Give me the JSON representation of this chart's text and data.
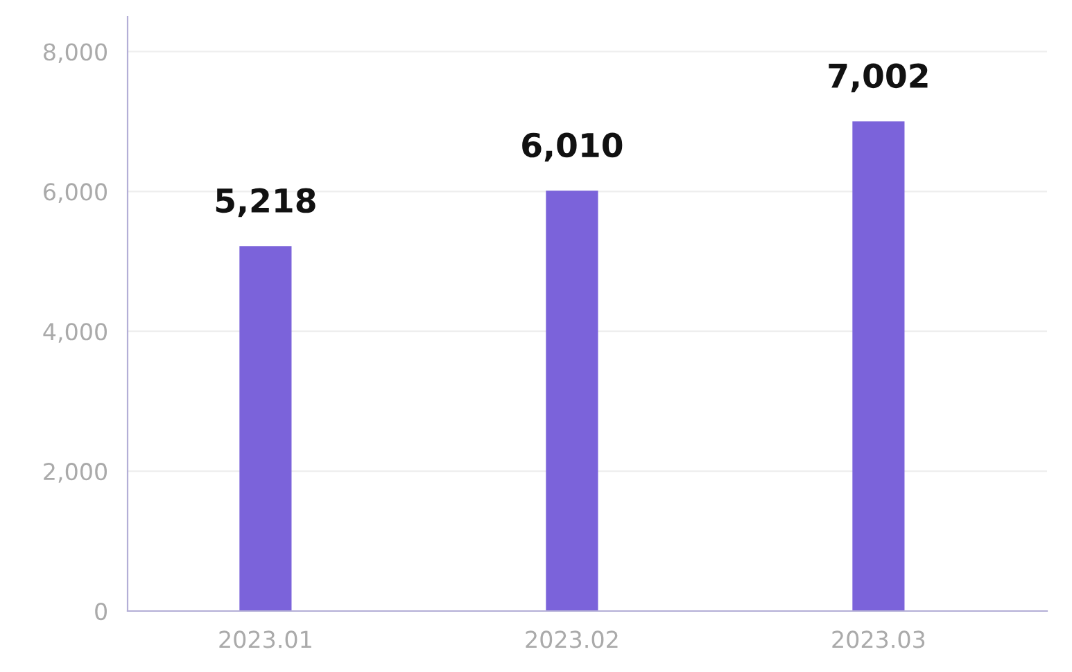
{
  "chart_data": {
    "type": "bar",
    "categories": [
      "2023.01",
      "2023.02",
      "2023.03"
    ],
    "values": [
      5218,
      6010,
      7002
    ],
    "color": "#7b63da",
    "ylim": [
      0,
      8500
    ],
    "yticks": [
      0,
      {
        "value": 2000,
        "label": "2,000"
      },
      {
        "value": 4000,
        "label": "4,000"
      },
      {
        "value": 6000,
        "label": "6,000"
      },
      {
        "value": 8000,
        "label": "8,000"
      }
    ],
    "grid": "y",
    "data_labels": true,
    "value_labels": [
      "5,218",
      "6,010",
      "7,002"
    ]
  }
}
